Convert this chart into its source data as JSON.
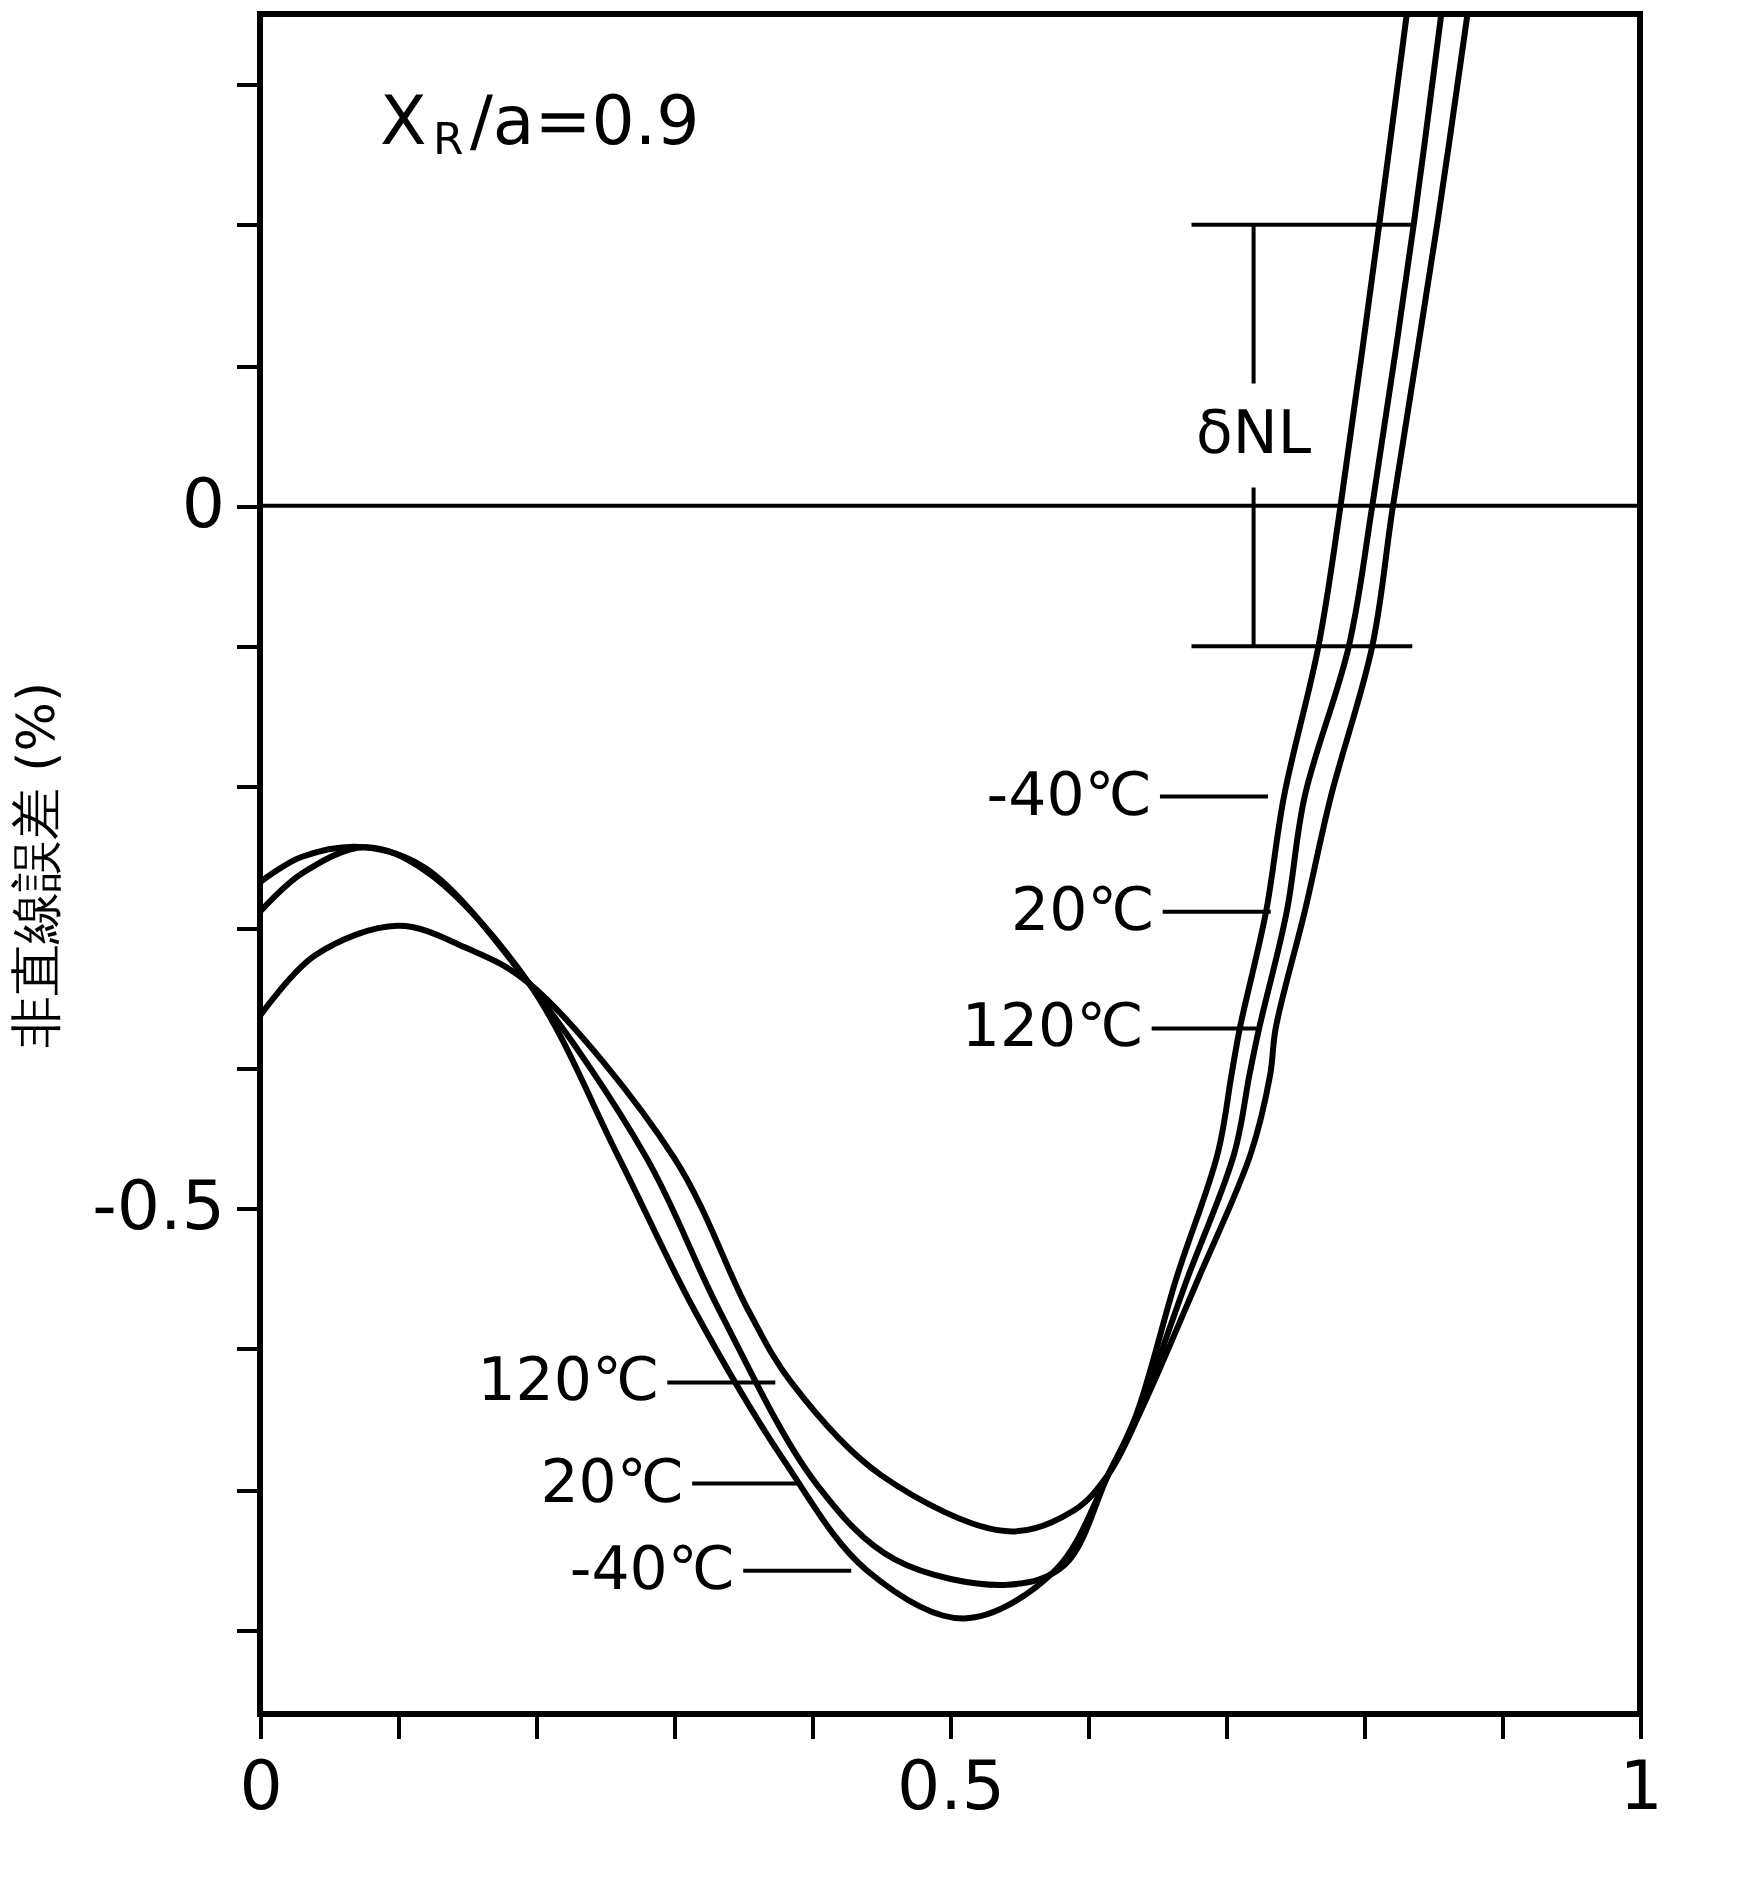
{
  "chart_data": {
    "type": "line",
    "ylabel": "非直線誤差 (%)",
    "xlim": [
      0,
      1
    ],
    "ylim": [
      -0.86,
      0.35
    ],
    "xticks": [
      0,
      {
        "value": 0.1,
        "label": null
      },
      {
        "value": 0.2,
        "label": null
      },
      {
        "value": 0.3,
        "label": null
      },
      {
        "value": 0.4,
        "label": null
      },
      0.5,
      {
        "value": 0.6,
        "label": null
      },
      {
        "value": 0.7,
        "label": null
      },
      {
        "value": 0.8,
        "label": null
      },
      {
        "value": 0.9,
        "label": null
      },
      1
    ],
    "yticks": [
      {
        "value": -0.8,
        "label": null
      },
      {
        "value": -0.7,
        "label": null
      },
      {
        "value": -0.6,
        "label": null
      },
      -0.5,
      {
        "value": -0.4,
        "label": null
      },
      {
        "value": -0.3,
        "label": null
      },
      {
        "value": -0.2,
        "label": null
      },
      {
        "value": -0.1,
        "label": null
      },
      0,
      {
        "value": 0.1,
        "label": null
      },
      {
        "value": 0.2,
        "label": null
      },
      {
        "value": 0.3,
        "label": null
      }
    ],
    "grid": false,
    "legend": false,
    "marker": "none",
    "line_style": "solid",
    "series": [
      {
        "color": "#000000",
        "x": [
          0,
          0.03,
          0.076,
          0.12,
          0.195,
          0.26,
          0.315,
          0.38,
          0.44,
          0.51,
          0.576,
          0.615,
          0.635,
          0.664,
          0.694,
          0.704,
          0.71,
          0.729,
          0.742,
          0.767,
          0.783,
          0.811,
          0.831
        ],
        "values": [
          -0.289,
          -0.262,
          -0.243,
          -0.26,
          -0.34,
          -0.464,
          -0.573,
          -0.68,
          -0.758,
          -0.792,
          -0.758,
          -0.689,
          -0.647,
          -0.55,
          -0.461,
          -0.405,
          -0.372,
          -0.289,
          -0.207,
          -0.1,
          0,
          0.2,
          0.35
        ]
      },
      {
        "color": "#000000",
        "x": [
          0,
          0.03,
          0.076,
          0.12,
          0.195,
          0.28,
          0.333,
          0.403,
          0.46,
          0.542,
          0.583,
          0.615,
          0.636,
          0.672,
          0.706,
          0.717,
          0.724,
          0.744,
          0.757,
          0.789,
          0.806,
          0.836,
          0.856
        ],
        "values": [
          -0.268,
          -0.25,
          -0.243,
          -0.258,
          -0.34,
          -0.464,
          -0.573,
          -0.696,
          -0.75,
          -0.768,
          -0.754,
          -0.689,
          -0.647,
          -0.55,
          -0.461,
          -0.405,
          -0.372,
          -0.289,
          -0.207,
          -0.1,
          0,
          0.2,
          0.35
        ]
      },
      {
        "color": "#000000",
        "x": [
          0,
          0.04,
          0.1,
          0.15,
          0.195,
          0.3,
          0.354,
          0.385,
          0.45,
          0.542,
          0.59,
          0.615,
          0.637,
          0.68,
          0.718,
          0.732,
          0.736,
          0.757,
          0.776,
          0.806,
          0.821,
          0.853,
          0.875
        ],
        "values": [
          -0.363,
          -0.32,
          -0.299,
          -0.315,
          -0.34,
          -0.464,
          -0.573,
          -0.624,
          -0.69,
          -0.73,
          -0.715,
          -0.689,
          -0.647,
          -0.55,
          -0.461,
          -0.405,
          -0.372,
          -0.289,
          -0.207,
          -0.1,
          0,
          0.2,
          0.35
        ]
      }
    ],
    "ref_lines": [
      {
        "axis": "y",
        "value": 0
      },
      {
        "axis": "y",
        "value": 0.2
      },
      {
        "axis": "y",
        "value": -0.1
      }
    ],
    "annotations": [
      "X$_{R}$/a=0.9",
      {
        "text": "δNL",
        "x": 0.72,
        "y": 0.2
      },
      {
        "text": "-40℃",
        "x": 0.742,
        "y": -0.207
      },
      {
        "text": "20℃",
        "x": 0.744,
        "y": -0.289
      },
      {
        "text": "120℃",
        "x": 0.736,
        "y": -0.372
      },
      {
        "text": "120℃",
        "x": 0.385,
        "y": -0.624
      },
      {
        "text": "20℃",
        "x": 0.403,
        "y": -0.696
      },
      {
        "text": "-40℃",
        "x": 0.44,
        "y": -0.758
      }
    ]
  }
}
